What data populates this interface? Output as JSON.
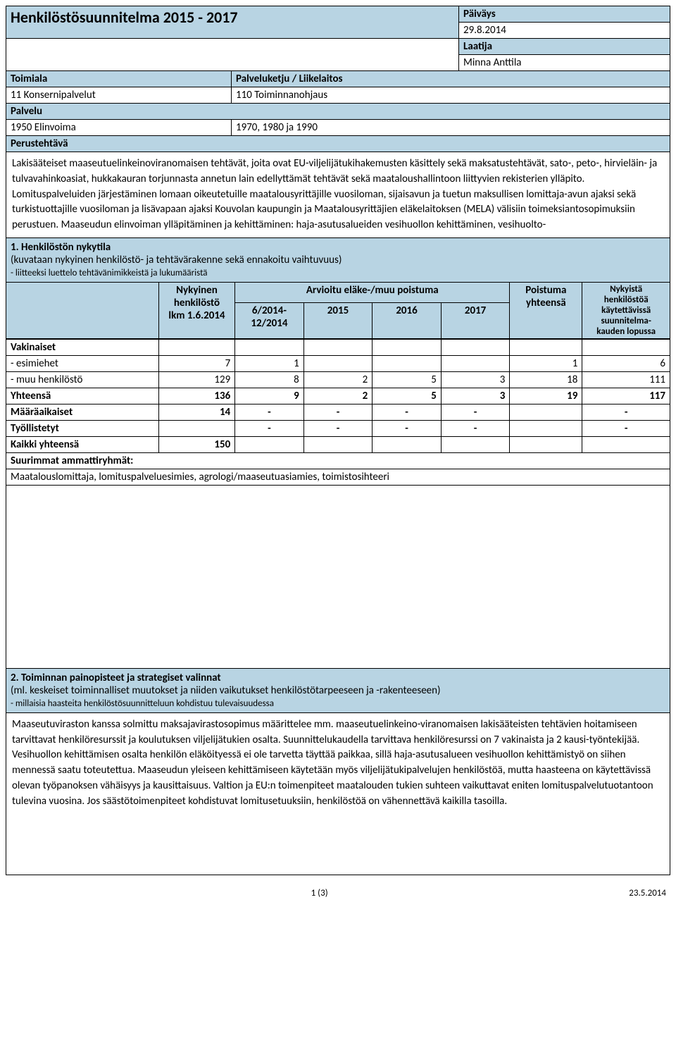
{
  "colors": {
    "header_bg": "#b8d4e3",
    "border": "#000000",
    "text": "#000000",
    "background": "#ffffff"
  },
  "header": {
    "title": "Henkilöstösuunnitelma 2015 - 2017",
    "paivays_label": "Päiväys",
    "paivays_value": "29.8.2014",
    "laatija_label": "Laatija",
    "laatija_value": "Minna Anttila",
    "toimiala_label": "Toimiala",
    "toimiala_col2": "Palveluketju / Liikelaitos",
    "toimiala_val1": "11 Konsernipalvelut",
    "toimiala_val2": "110 Toiminnanohjaus",
    "palvelu_label": "Palvelu",
    "palvelu_val1": "1950 Elinvoima",
    "palvelu_val2": "1970, 1980 ja 1990",
    "perustehtava_label": "Perustehtävä"
  },
  "perustehtava_text": "Lakisääteiset maaseutuelinkeinoviranomaisen tehtävät, joita ovat EU-viljelijätukihakemusten käsittely sekä maksatustehtävät, sato-, peto-, hirvieläin- ja tulvavahinkoasiat, hukkakauran torjunnasta annetun lain edellyttämät tehtävät sekä maataloushallintoon liittyvien rekisterien ylläpito. Lomituspalveluiden järjestäminen lomaan oikeutetuille maatalousyrittäjille vuosiloman, sijaisavun ja tuetun maksullisen lomittaja-avun ajaksi sekä turkistuottajille vuosiloman ja lisävapaan ajaksi Kouvolan kaupungin ja Maatalousyrittäjien eläkelaitoksen (MELA) välisiin toimeksiantosopimuksiin perustuen. Maaseudun elinvoiman ylläpitäminen ja kehittäminen: haja-asutusalueiden vesihuollon kehittäminen, vesihuolto-",
  "section1": {
    "title": "1. Henkilöstön nykytila",
    "sub1": "(kuvataan nykyinen henkilöstö- ja tehtävärakenne sekä ennakoitu vaihtuvuus)",
    "sub2": "- liitteeksi luettelo tehtävänimikkeistä ja lukumääristä",
    "col_nykyinen_l1": "Nykyinen",
    "col_nykyinen_l2": "henkilöstö",
    "col_nykyinen_l3": "lkm 1.6.2014",
    "col_arvioitu": "Arvioitu eläke-/muu poistuma",
    "col_period": "6/2014-12/2014",
    "col_2015": "2015",
    "col_2016": "2016",
    "col_2017": "2017",
    "col_poistuma_l1": "Poistuma",
    "col_poistuma_l2": "yhteensä",
    "col_nykyista_l1": "Nykyistä",
    "col_nykyista_l2": "henkilöstöä",
    "col_nykyista_l3": "käytettävissä",
    "col_nykyista_l4": "suunnitelma-",
    "col_nykyista_l5": "kauden lopussa"
  },
  "table": {
    "rows": [
      {
        "label": "Vakinaiset",
        "c1": "",
        "c2": "",
        "c3": "",
        "c4": "",
        "c5": "",
        "c6": "",
        "c7": ""
      },
      {
        "label": "- esimiehet",
        "c1": "7",
        "c2": "1",
        "c3": "",
        "c4": "",
        "c5": "",
        "c6": "1",
        "c7": "6"
      },
      {
        "label": "- muu henkilöstö",
        "c1": "129",
        "c2": "8",
        "c3": "2",
        "c4": "5",
        "c5": "3",
        "c6": "18",
        "c7": "111"
      },
      {
        "label": "Yhteensä",
        "c1": "136",
        "c2": "9",
        "c3": "2",
        "c4": "5",
        "c5": "3",
        "c6": "19",
        "c7": "117"
      },
      {
        "label": "Määräaikaiset",
        "c1": "14",
        "c2": "-",
        "c3": "-",
        "c4": "-",
        "c5": "-",
        "c6": "",
        "c7": "-"
      },
      {
        "label": "Työllistetyt",
        "c1": "",
        "c2": "-",
        "c3": "-",
        "c4": "-",
        "c5": "-",
        "c6": "",
        "c7": "-"
      },
      {
        "label": "Kaikki yhteensä",
        "c1": "150",
        "c2": "",
        "c3": "",
        "c4": "",
        "c5": "",
        "c6": "",
        "c7": ""
      }
    ],
    "suurimmat_label": "Suurimmat ammattiryhmät:",
    "suurimmat_value": "Maatalouslomittaja, lomituspalveluesimies, agrologi/maaseutuasiamies, toimistosihteeri"
  },
  "section2": {
    "title": "2. Toiminnan painopisteet ja strategiset valinnat",
    "sub1": "(ml. keskeiset toiminnalliset muutokset ja niiden vaikutukset henkilöstötarpeeseen ja -rakenteeseen)",
    "sub2": "- millaisia haasteita henkilöstösuunnitteluun kohdistuu tulevaisuudessa",
    "body": "Maaseutuviraston kanssa solmittu maksajavirastosopimus määrittelee mm. maaseutuelinkeino-viranomaisen lakisääteisten tehtävien hoitamiseen tarvittavat henkilöresurssit ja koulutuksen viljelijätukien osalta. Suunnittelukaudella tarvittava henkilöresurssi on 7 vakinaista ja 2 kausi-työntekijää. Vesihuollon kehittämisen osalta henkilön eläköityessä ei ole tarvetta täyttää paikkaa, sillä haja-asutusalueen vesihuollon kehittämistyö on siihen mennessä saatu toteutettua.  Maaseudun yleiseen kehittämiseen käytetään myös viljelijätukipalvelujen henkilöstöä, mutta haasteena on käytettävissä olevan työpanoksen vähäisyys ja kausittaisuus. Valtion ja EU:n toimenpiteet maatalouden tukien suhteen vaikuttavat eniten lomituspalvelutuotantoon tulevina vuosina. Jos säästötoimenpiteet kohdistuvat lomitusetuuksiin, henkilöstöä on vähennettävä kaikilla tasoilla."
  },
  "footer": {
    "page": "1 (3)",
    "date": "23.5.2014"
  }
}
